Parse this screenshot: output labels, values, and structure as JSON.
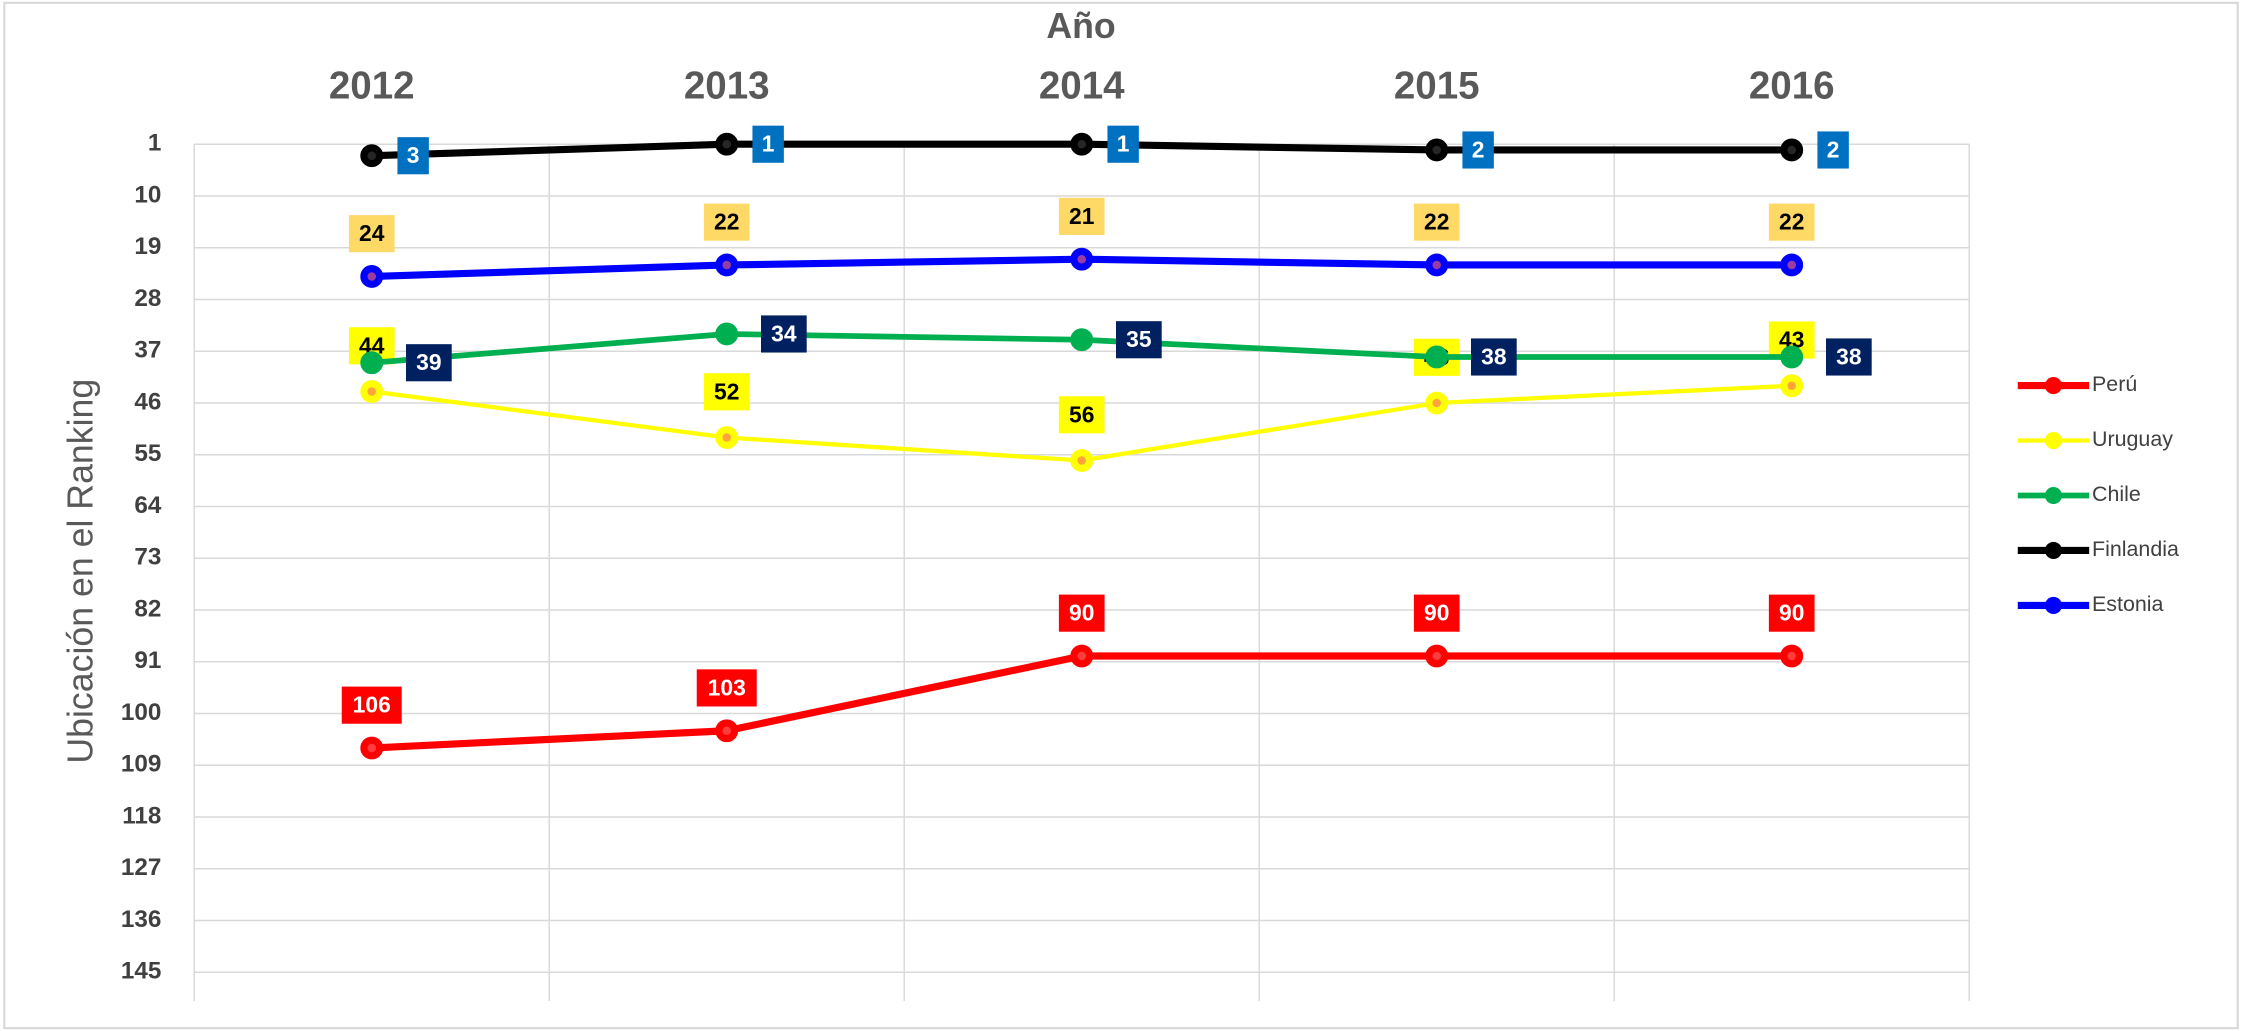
{
  "chart_data": {
    "type": "line",
    "title": "Año",
    "ylabel": "Ubicación en el Ranking",
    "categories": [
      "2012",
      "2013",
      "2014",
      "2015",
      "2016"
    ],
    "ylim": [
      1,
      150
    ],
    "y_inverted": true,
    "yticks": [
      1,
      10,
      19,
      28,
      37,
      46,
      55,
      64,
      73,
      82,
      91,
      100,
      109,
      118,
      127,
      136,
      145
    ],
    "grid": true,
    "legend": "right",
    "series": [
      {
        "name": "Perú",
        "color": "#ff0000",
        "label_color": "#ff0000",
        "values": [
          106,
          103,
          90,
          90,
          90
        ]
      },
      {
        "name": "Uruguay",
        "color": "#ffff00",
        "label_color": "#ffff00",
        "values": [
          44,
          52,
          56,
          46,
          43
        ]
      },
      {
        "name": "Chile",
        "color": "#00b050",
        "label_color": "#002060",
        "values": [
          39,
          34,
          35,
          38,
          38
        ]
      },
      {
        "name": "Finlandia",
        "color": "#000000",
        "label_color": "#0070c0",
        "values": [
          3,
          1,
          1,
          2,
          2
        ]
      },
      {
        "name": "Estonia",
        "color": "#0000ff",
        "label_color": "#ffd966",
        "values": [
          24,
          22,
          21,
          22,
          22
        ]
      }
    ]
  }
}
